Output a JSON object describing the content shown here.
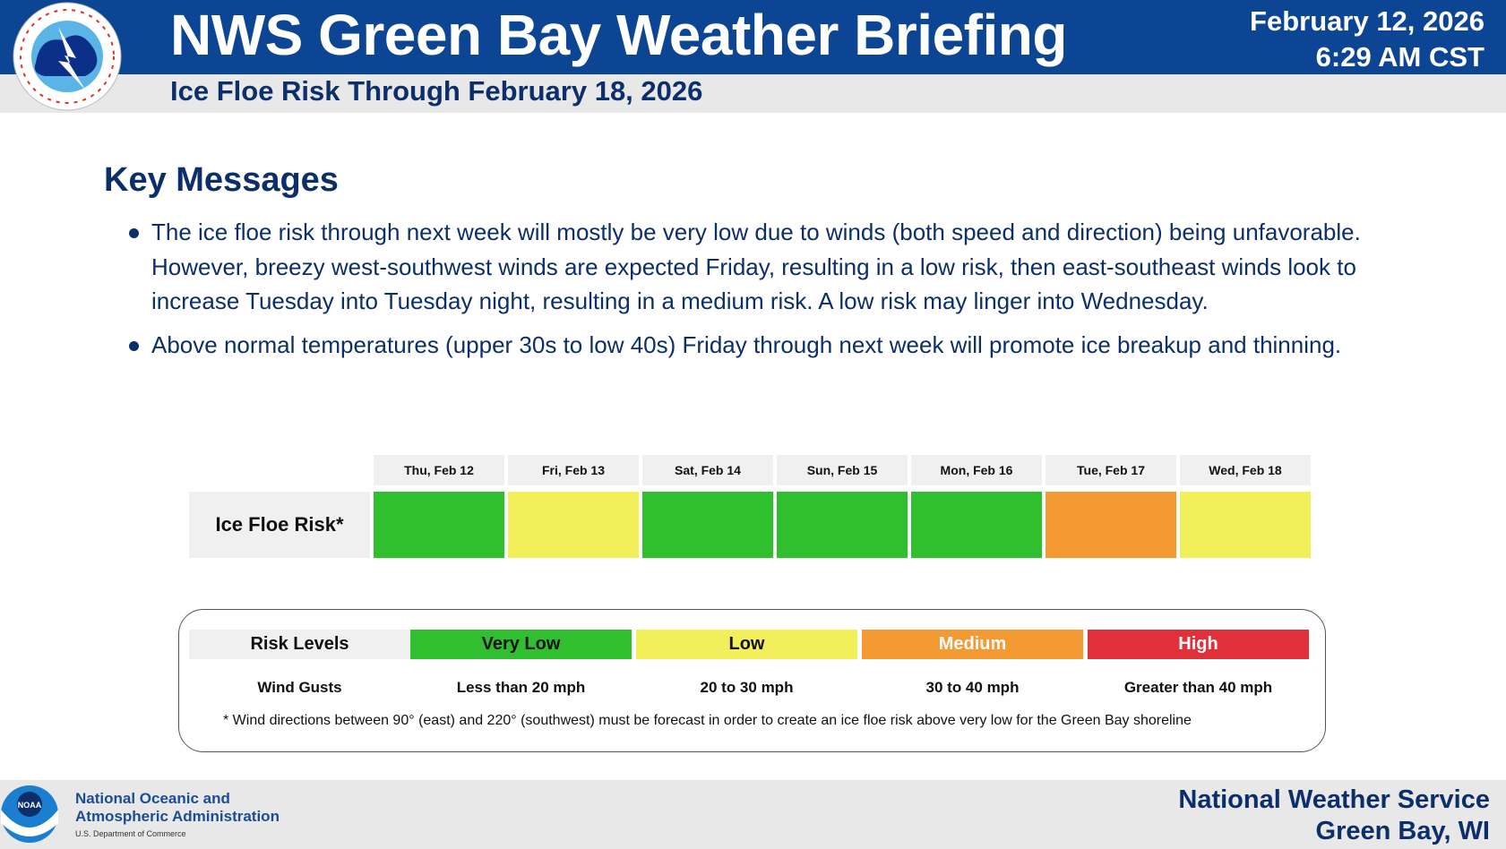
{
  "header": {
    "title": "NWS Green Bay Weather Briefing",
    "subtitle": "Ice Floe Risk Through February 18, 2026",
    "date": "February 12, 2026",
    "time": "6:29 AM CST"
  },
  "key_messages": {
    "heading": "Key Messages",
    "bullets": [
      "The ice floe risk through next week will mostly be very low due to winds (both speed and direction) being unfavorable. However, breezy west-southwest winds are expected Friday, resulting in a low risk, then east-southeast winds look to increase Tuesday into Tuesday night, resulting in a medium risk. A low risk may linger into Wednesday.",
      "Above normal temperatures (upper 30s to low 40s) Friday through next week will promote ice breakup and thinning."
    ]
  },
  "risk_table": {
    "row_label": "Ice Floe Risk*",
    "days": [
      {
        "label": "Thu, Feb 12",
        "risk": "Very Low",
        "color": "#2fbf2f"
      },
      {
        "label": "Fri, Feb 13",
        "risk": "Low",
        "color": "#f2f05a"
      },
      {
        "label": "Sat, Feb 14",
        "risk": "Very Low",
        "color": "#2fbf2f"
      },
      {
        "label": "Sun, Feb 15",
        "risk": "Very Low",
        "color": "#2fbf2f"
      },
      {
        "label": "Mon, Feb 16",
        "risk": "Very Low",
        "color": "#2fbf2f"
      },
      {
        "label": "Tue, Feb 17",
        "risk": "Medium",
        "color": "#f39a32"
      },
      {
        "label": "Wed, Feb 18",
        "risk": "Low",
        "color": "#f2f05a"
      }
    ]
  },
  "legend": {
    "title": "Risk Levels",
    "gust_label": "Wind Gusts",
    "levels": [
      {
        "name": "Very Low",
        "gusts": "Less than 20 mph",
        "color": "#2fbf2f",
        "text": "#111"
      },
      {
        "name": "Low",
        "gusts": "20 to 30 mph",
        "color": "#f2f05a",
        "text": "#111"
      },
      {
        "name": "Medium",
        "gusts": "30 to 40 mph",
        "color": "#f39a32",
        "text": "#fff"
      },
      {
        "name": "High",
        "gusts": "Greater than 40 mph",
        "color": "#e0303a",
        "text": "#fff"
      }
    ],
    "footnote": "* Wind directions between 90° (east) and 220° (southwest) must be forecast in order to create an ice floe risk above very low for the Green Bay shoreline"
  },
  "footer": {
    "noaa_line1": "National Oceanic and",
    "noaa_line2": "Atmospheric Administration",
    "noaa_line3": "U.S. Department of Commerce",
    "noaa_logo_text": "NOAA",
    "nws_line1": "National Weather Service",
    "nws_line2": "Green Bay, WI"
  }
}
